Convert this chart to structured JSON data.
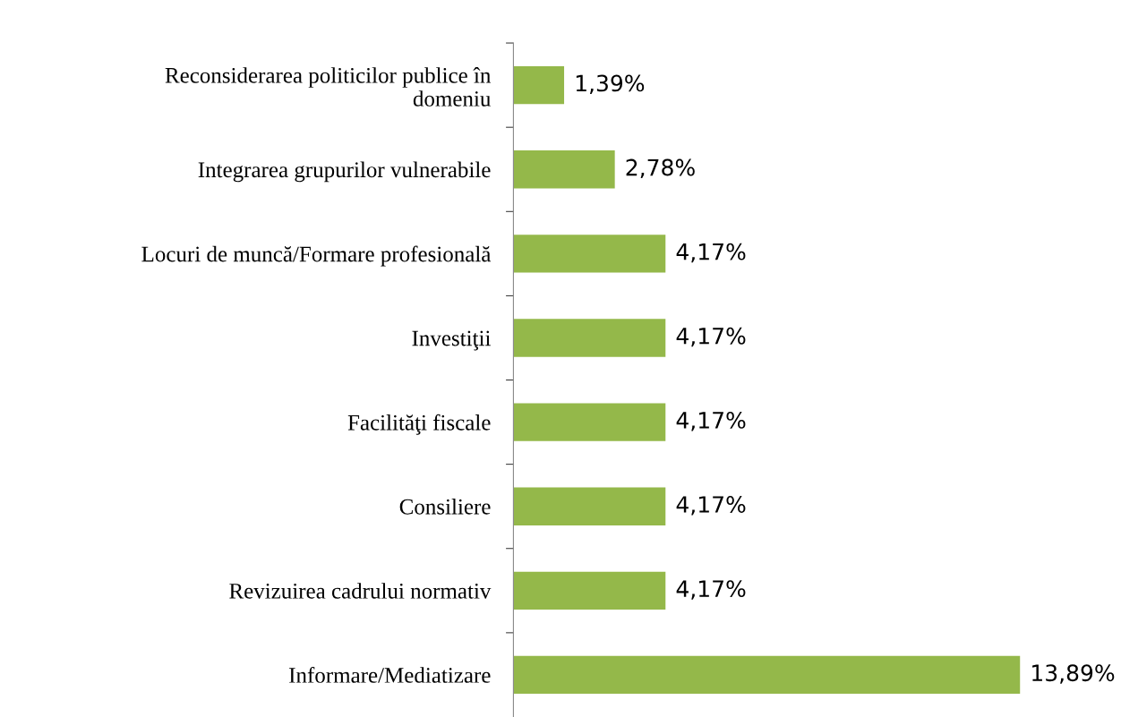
{
  "chart_data": {
    "type": "bar",
    "orientation": "horizontal",
    "categories": [
      "Reconsiderarea politicilor publice în\ndomeniu",
      "Integrarea grupurilor vulnerabile",
      "Locuri de muncă/Formare profesională",
      "Investiţii",
      "Facilităţi fiscale",
      "Consiliere",
      "Revizuirea cadrului normativ",
      "Informare/Mediatizare"
    ],
    "values": [
      1.39,
      2.78,
      4.17,
      4.17,
      4.17,
      4.17,
      4.17,
      13.89
    ],
    "value_labels": [
      "1,39%",
      "2,78%",
      "4,17%",
      "4,17%",
      "4,17%",
      "4,17%",
      "4,17%",
      "13,89%"
    ],
    "color": "#94b84a",
    "tick_labels": "y",
    "grid": false,
    "legend": false
  }
}
